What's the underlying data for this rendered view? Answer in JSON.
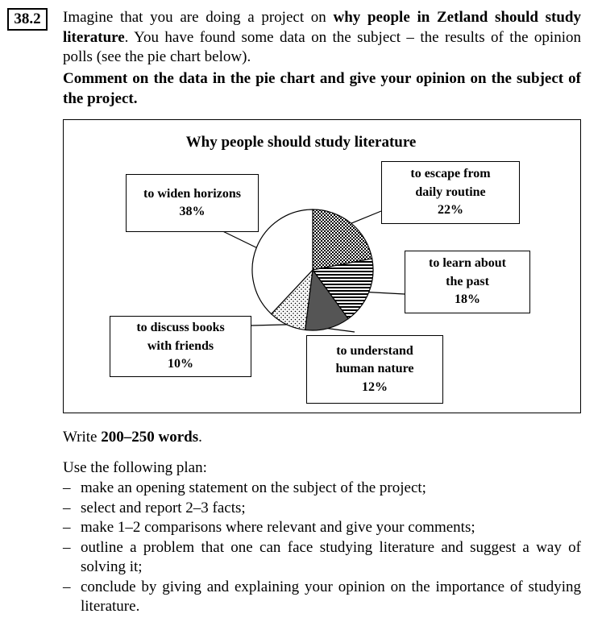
{
  "task_number": "38.2",
  "intro": {
    "p1": "Imagine that you are doing a project on ",
    "topic": "why people in Zetland should study literature",
    "p2": ". You have found some data on the subject – the results of the opinion polls (see the pie chart below).",
    "task": "Comment on the data in the pie chart and give your opinion on the subject of the project."
  },
  "chart_data": {
    "type": "pie",
    "title": "Why people should study literature",
    "slices": [
      {
        "label_lines": [
          "to escape from",
          "daily routine"
        ],
        "value": 22,
        "value_label": "22%",
        "fill": "crosshatch"
      },
      {
        "label_lines": [
          "to learn about",
          "the past"
        ],
        "value": 18,
        "value_label": "18%",
        "fill": "horizontal-stripes"
      },
      {
        "label_lines": [
          "to understand",
          "human nature"
        ],
        "value": 12,
        "value_label": "12%",
        "fill": "#555555"
      },
      {
        "label_lines": [
          "to discuss books",
          "with friends"
        ],
        "value": 10,
        "value_label": "10%",
        "fill": "dotted"
      },
      {
        "label_lines": [
          "to widen horizons"
        ],
        "value": 38,
        "value_label": "38%",
        "fill": "#ffffff"
      }
    ]
  },
  "word_count": {
    "prefix": "Write ",
    "bold": "200–250 words",
    "suffix": "."
  },
  "plan": {
    "heading": "Use the following plan:",
    "items": [
      "make an opening statement on the subject of the project;",
      "select and report 2–3 facts;",
      "make 1–2 comparisons where relevant and give your comments;",
      "outline a problem that one can face studying literature and suggest a way of solving it;",
      "conclude by giving and explaining your opinion on the importance of studying literature."
    ]
  }
}
